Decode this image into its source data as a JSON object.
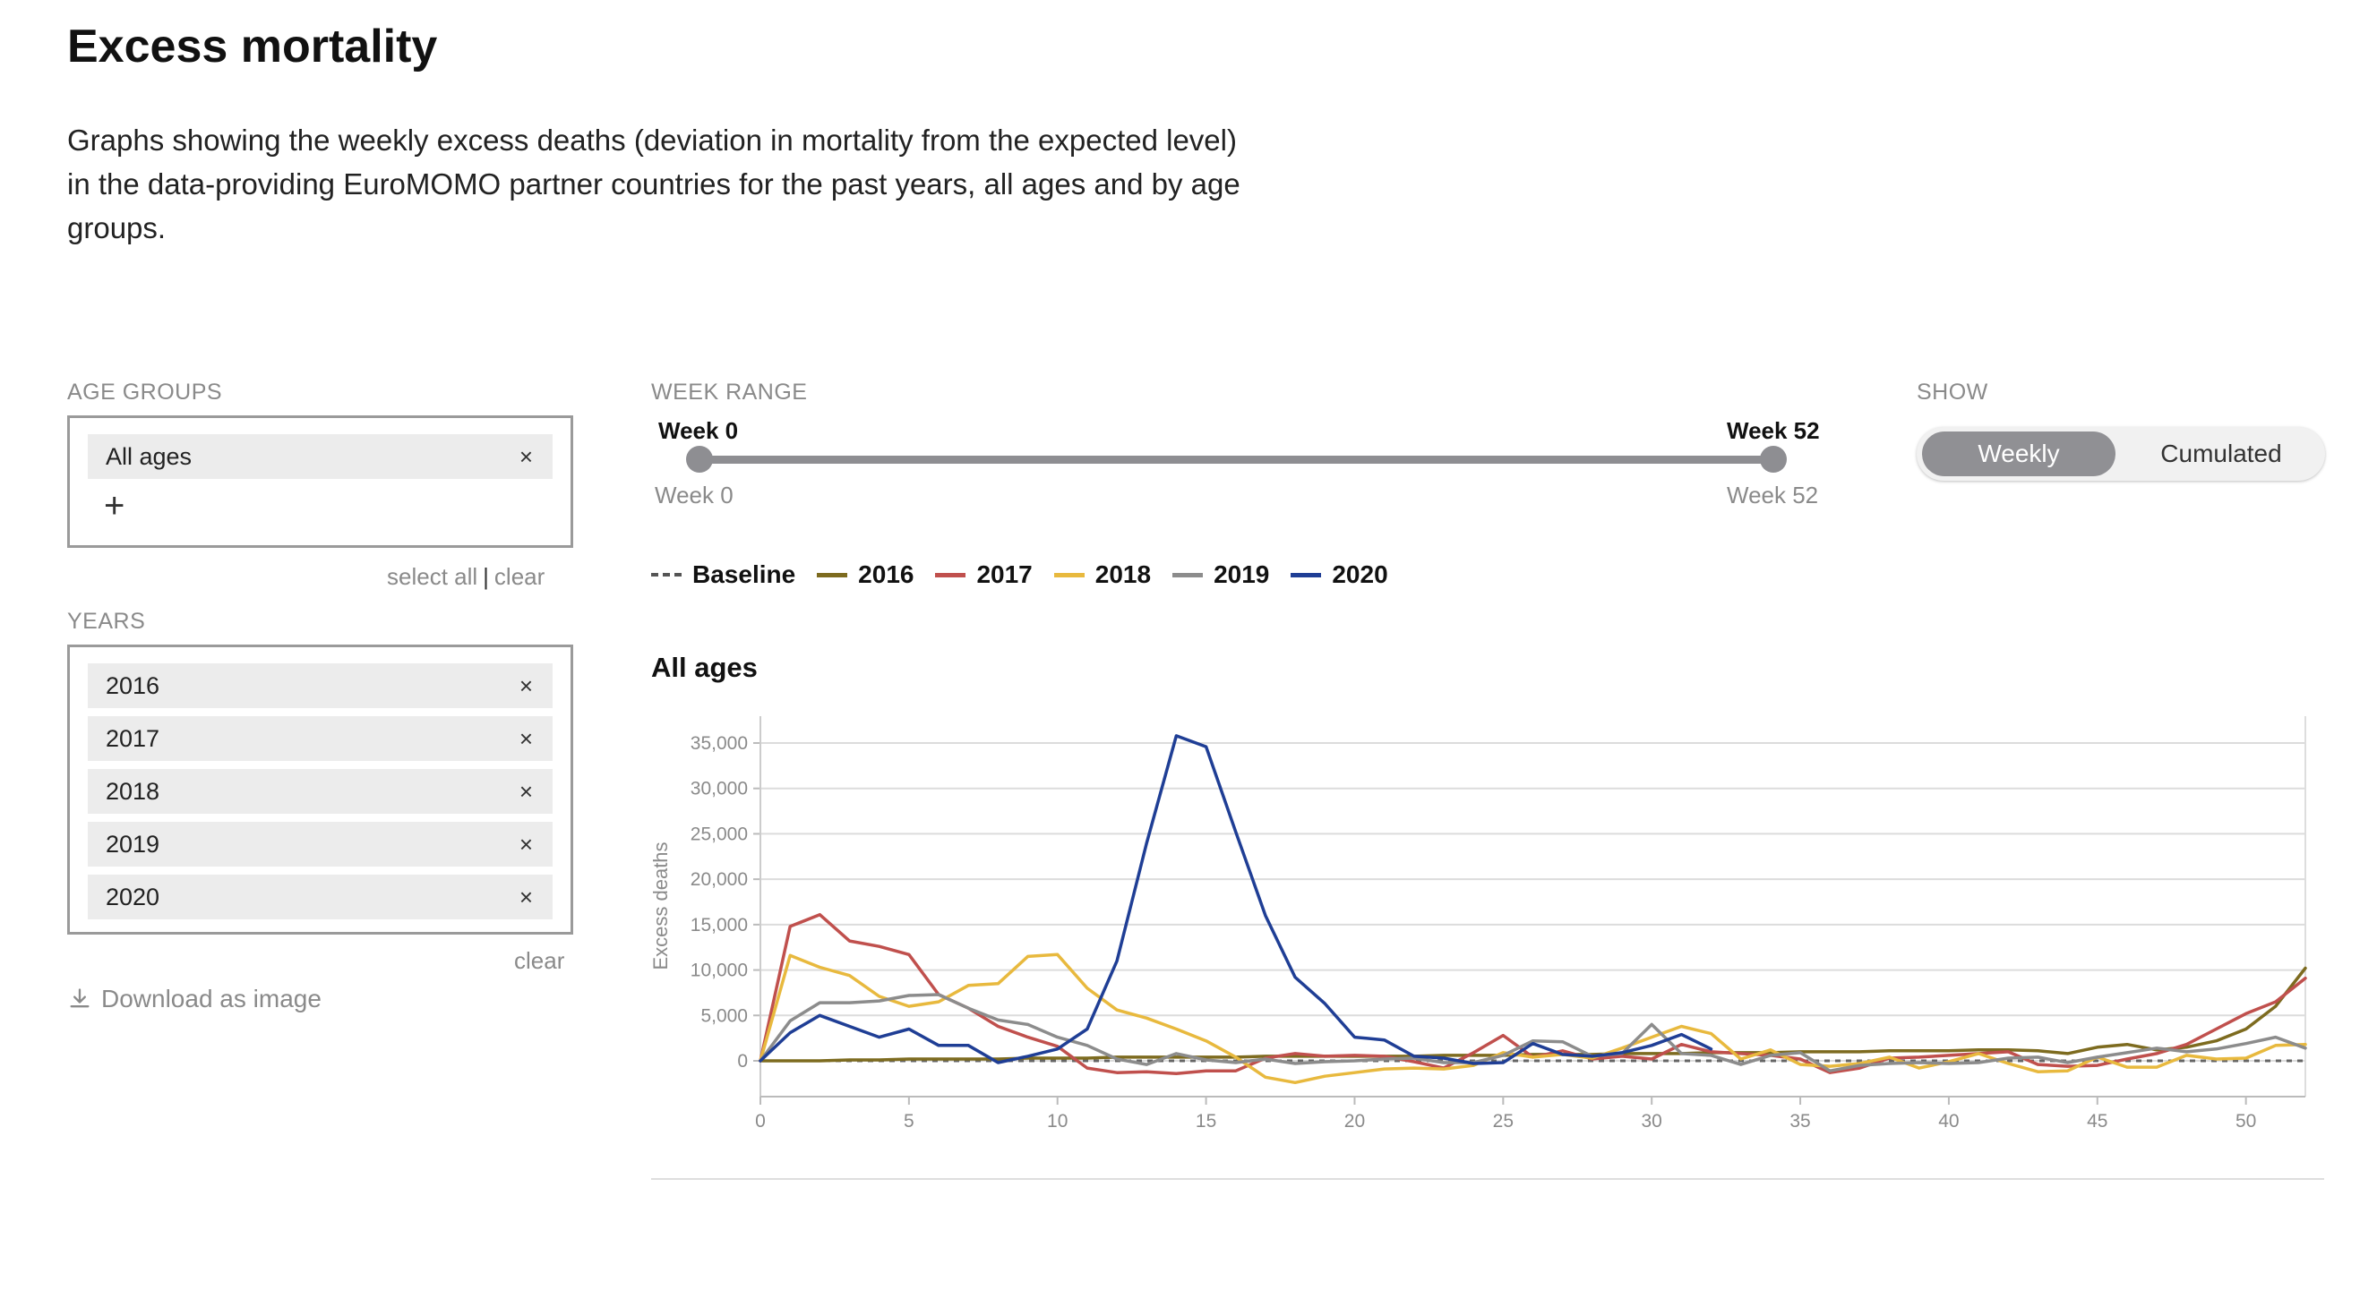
{
  "header": {
    "title": "Excess mortality",
    "intro": "Graphs showing the weekly excess deaths (deviation in mortality from the expected level) in the data-providing EuroMOMO partner countries for the past years, all ages and by age groups."
  },
  "filters": {
    "age_groups_label": "AGE GROUPS",
    "age_group_chips": [
      "All ages"
    ],
    "select_all": "select all",
    "clear": "clear",
    "years_label": "YEARS",
    "year_chips": [
      "2016",
      "2017",
      "2018",
      "2019",
      "2020"
    ],
    "years_clear": "clear",
    "chip_remove": "×",
    "add": "+",
    "download_label": "Download as image"
  },
  "week_range": {
    "label": "WEEK RANGE",
    "start_label": "Week 0",
    "end_label": "Week 52",
    "min_label": "Week 0",
    "max_label": "Week 52",
    "start": 0,
    "end": 52
  },
  "show": {
    "label": "SHOW",
    "options": [
      "Weekly",
      "Cumulated"
    ],
    "selected": "Weekly"
  },
  "colors": {
    "baseline": "#666666",
    "2016": "#7d6b1f",
    "2017": "#c0504d",
    "2018": "#e8b93e",
    "2019": "#8c8c8c",
    "2020": "#1f3e95"
  },
  "chart_data": {
    "type": "line",
    "title": "All ages",
    "xlabel": "",
    "ylabel": "Excess deaths",
    "xlim": [
      0,
      52
    ],
    "ylim": [
      -4000,
      38000
    ],
    "xticks": [
      0,
      5,
      10,
      15,
      20,
      25,
      30,
      35,
      40,
      45,
      50
    ],
    "yticks": [
      0,
      5000,
      10000,
      15000,
      20000,
      25000,
      30000,
      35000
    ],
    "ytick_labels": [
      "0",
      "5,000",
      "10,000",
      "15,000",
      "20,000",
      "25,000",
      "30,000",
      "35,000"
    ],
    "grid": true,
    "legend_position": "top",
    "baseline": {
      "name": "Baseline",
      "value": 0
    },
    "series": [
      {
        "name": "2016",
        "values": [
          0,
          0,
          0,
          100,
          100,
          200,
          200,
          200,
          200,
          300,
          300,
          300,
          400,
          400,
          400,
          400,
          400,
          500,
          500,
          500,
          500,
          500,
          500,
          600,
          600,
          600,
          700,
          700,
          700,
          800,
          800,
          800,
          900,
          900,
          900,
          1000,
          1000,
          1000,
          1100,
          1100,
          1100,
          1200,
          1200,
          1100,
          800,
          1500,
          1800,
          1200,
          1500,
          2200,
          3500,
          6000,
          10200
        ]
      },
      {
        "name": "2017",
        "values": [
          0,
          14800,
          16100,
          13200,
          12600,
          11700,
          7300,
          5800,
          3800,
          2600,
          1600,
          -800,
          -1300,
          -1200,
          -1400,
          -1100,
          -1100,
          300,
          800,
          500,
          600,
          500,
          -100,
          -800,
          900,
          2800,
          400,
          1100,
          200,
          500,
          200,
          1800,
          1000,
          800,
          600,
          200,
          -1300,
          -800,
          300,
          400,
          600,
          800,
          1000,
          -400,
          -600,
          -500,
          200,
          800,
          1800,
          3500,
          5200,
          6500,
          9100
        ]
      },
      {
        "name": "2018",
        "values": [
          0,
          11600,
          10300,
          9400,
          7100,
          6000,
          6500,
          8300,
          8500,
          11500,
          11700,
          8000,
          5600,
          4700,
          3500,
          2200,
          400,
          -1800,
          -2400,
          -1700,
          -1300,
          -900,
          -800,
          -900,
          -500,
          900,
          400,
          700,
          300,
          1400,
          2600,
          3800,
          3000,
          200,
          1200,
          -400,
          -600,
          -300,
          400,
          -800,
          -100,
          800,
          -300,
          -1200,
          -1100,
          400,
          -700,
          -700,
          600,
          200,
          300,
          1700,
          1800
        ]
      },
      {
        "name": "2019",
        "values": [
          0,
          4400,
          6400,
          6400,
          6600,
          7200,
          7300,
          5800,
          4500,
          4000,
          2600,
          1700,
          200,
          -400,
          800,
          100,
          -200,
          200,
          -300,
          -100,
          0,
          200,
          300,
          -200,
          -200,
          600,
          2200,
          2100,
          500,
          800,
          4000,
          800,
          600,
          -400,
          600,
          900,
          -1100,
          -500,
          -300,
          -200,
          -300,
          -200,
          300,
          400,
          -200,
          400,
          900,
          1400,
          1000,
          1300,
          1900,
          2600,
          1400
        ]
      },
      {
        "name": "2020",
        "values": [
          0,
          3100,
          5000,
          3800,
          2600,
          3500,
          1700,
          1700,
          -200,
          500,
          1300,
          3500,
          11000,
          24000,
          35800,
          34600,
          25200,
          16000,
          9200,
          6300,
          2600,
          2300,
          500,
          300,
          -300,
          -200,
          1900,
          700,
          500,
          900,
          1700,
          2900,
          1300,
          null,
          null,
          null,
          null,
          null,
          null,
          null,
          null,
          null,
          null,
          null,
          null,
          null,
          null,
          null,
          null,
          null,
          null,
          null,
          null
        ]
      }
    ]
  }
}
